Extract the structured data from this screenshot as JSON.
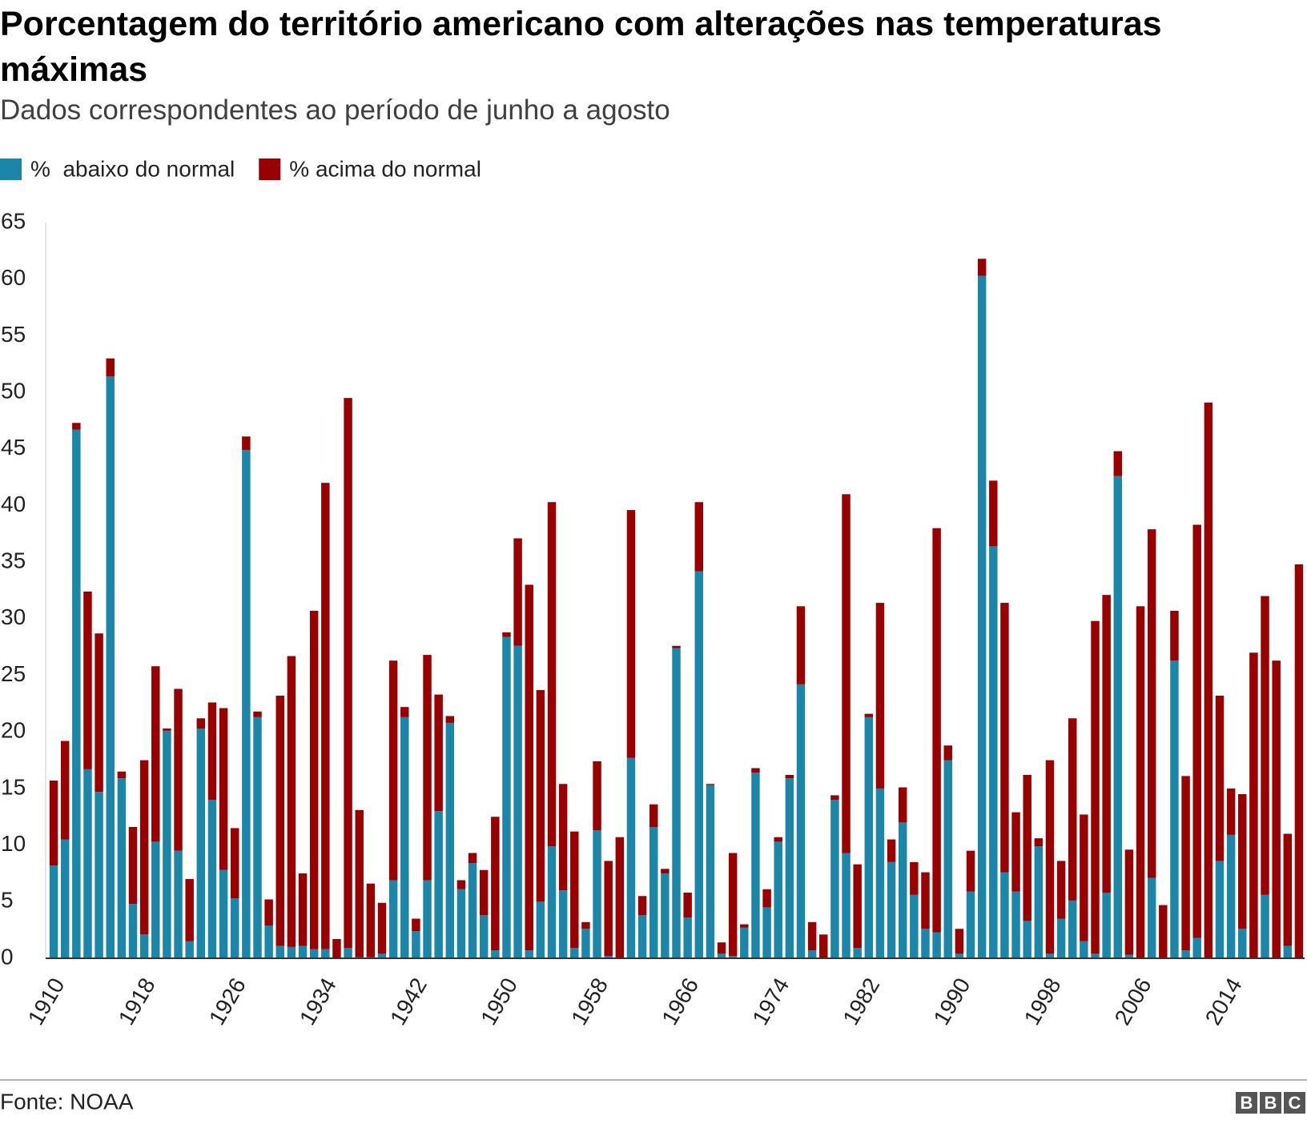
{
  "chart_data": {
    "type": "stacked-bar",
    "title": "Porcentagem do território americano com alterações nas temperaturas máximas",
    "subtitle": "Dados correspondentes ao período de junho a agosto",
    "source": "Fonte: NOAA",
    "logo": [
      "B",
      "B",
      "C"
    ],
    "categories": [
      "1910",
      null,
      null,
      null,
      null,
      null,
      null,
      null,
      "1918",
      null,
      null,
      null,
      null,
      null,
      null,
      null,
      "1926",
      null,
      null,
      null,
      null,
      null,
      null,
      null,
      "1934",
      null,
      null,
      null,
      null,
      null,
      null,
      null,
      "1942",
      null,
      null,
      null,
      null,
      null,
      null,
      null,
      "1950",
      null,
      null,
      null,
      null,
      null,
      null,
      null,
      "1958",
      null,
      null,
      null,
      null,
      null,
      null,
      null,
      "1966",
      null,
      null,
      null,
      null,
      null,
      null,
      null,
      "1974",
      null,
      null,
      null,
      null,
      null,
      null,
      null,
      "1982",
      null,
      null,
      null,
      null,
      null,
      null,
      null,
      "1990",
      null,
      null,
      null,
      null,
      null,
      null,
      null,
      "1998",
      null,
      null,
      null,
      null,
      null,
      null,
      null,
      "2006",
      null,
      null,
      null,
      null,
      null,
      null,
      null,
      "2014",
      null,
      null,
      null,
      null,
      null,
      null
    ],
    "series": [
      {
        "name": "%  abaixo do normal",
        "color": "#1b86a8",
        "values": [
          8.2,
          10.5,
          46.7,
          16.7,
          14.7,
          51.4,
          15.9,
          4.8,
          2.1,
          10.3,
          20.1,
          9.5,
          1.5,
          20.3,
          14,
          7.8,
          5.3,
          44.9,
          21.3,
          2.9,
          1.1,
          1,
          1.1,
          0.8,
          0.8,
          0,
          0.9,
          0.1,
          0.1,
          0.4,
          6.9,
          21.3,
          2.4,
          6.9,
          13,
          20.8,
          6.1,
          8.4,
          3.8,
          0.7,
          28.4,
          27.6,
          0.7,
          5,
          9.9,
          6,
          0.9,
          2.6,
          11.3,
          0.2,
          0,
          17.7,
          3.8,
          11.6,
          7.5,
          27.4,
          3.6,
          34.2,
          15.3,
          0.4,
          0.2,
          2.7,
          16.4,
          4.5,
          10.3,
          15.9,
          24.2,
          0.7,
          0,
          14,
          9.3,
          0.9,
          21.3,
          15,
          8.5,
          12,
          5.6,
          2.6,
          2.3,
          17.5,
          0.4,
          5.9,
          60.3,
          36.4,
          7.6,
          5.9,
          3.3,
          9.9,
          0.4,
          3.5,
          5.1,
          1.5,
          0.4,
          5.8,
          42.6,
          0.3,
          0,
          7.1,
          0,
          26.3,
          0.7,
          1.8,
          0,
          8.6,
          10.9,
          2.6,
          0,
          5.6,
          0,
          1.1,
          0
        ]
      },
      {
        "name": "% acima do normal",
        "color": "#990000",
        "values": [
          7.5,
          8.7,
          0.6,
          15.7,
          14,
          1.6,
          0.6,
          6.8,
          15.4,
          15.5,
          0.2,
          14.3,
          5.5,
          0.9,
          8.6,
          14.3,
          6.2,
          1.2,
          0.5,
          2.3,
          22.1,
          25.7,
          6.4,
          29.9,
          41.2,
          1.7,
          48.6,
          13,
          6.5,
          4.5,
          19.4,
          0.9,
          1.1,
          19.9,
          10.3,
          0.6,
          0.8,
          0.9,
          4,
          11.8,
          0.4,
          9.5,
          32.3,
          18.7,
          30.4,
          9.4,
          10.3,
          0.6,
          6.1,
          8.4,
          10.7,
          21.9,
          1.7,
          2,
          0.4,
          0.2,
          2.2,
          6.1,
          0.1,
          1,
          9.1,
          0.3,
          0.4,
          1.6,
          0.4,
          0.3,
          6.9,
          2.5,
          2.1,
          0.4,
          31.7,
          7.4,
          0.3,
          16.4,
          2,
          3.1,
          2.9,
          5,
          35.7,
          1.3,
          2.2,
          3.6,
          1.5,
          5.8,
          23.8,
          7,
          12.9,
          0.7,
          17.1,
          5.1,
          16.1,
          11.2,
          29.4,
          26.3,
          2.2,
          9.3,
          31.1,
          30.8,
          4.7,
          4.4,
          15.4,
          36.5,
          49.1,
          14.6,
          4.1,
          11.9,
          27,
          26.4,
          26.3,
          9.9,
          34.8
        ]
      }
    ],
    "ylim": [
      0,
      65
    ],
    "yticks": [
      0,
      5,
      10,
      15,
      20,
      25,
      30,
      35,
      40,
      45,
      50,
      55,
      60,
      65
    ],
    "grid": false
  }
}
